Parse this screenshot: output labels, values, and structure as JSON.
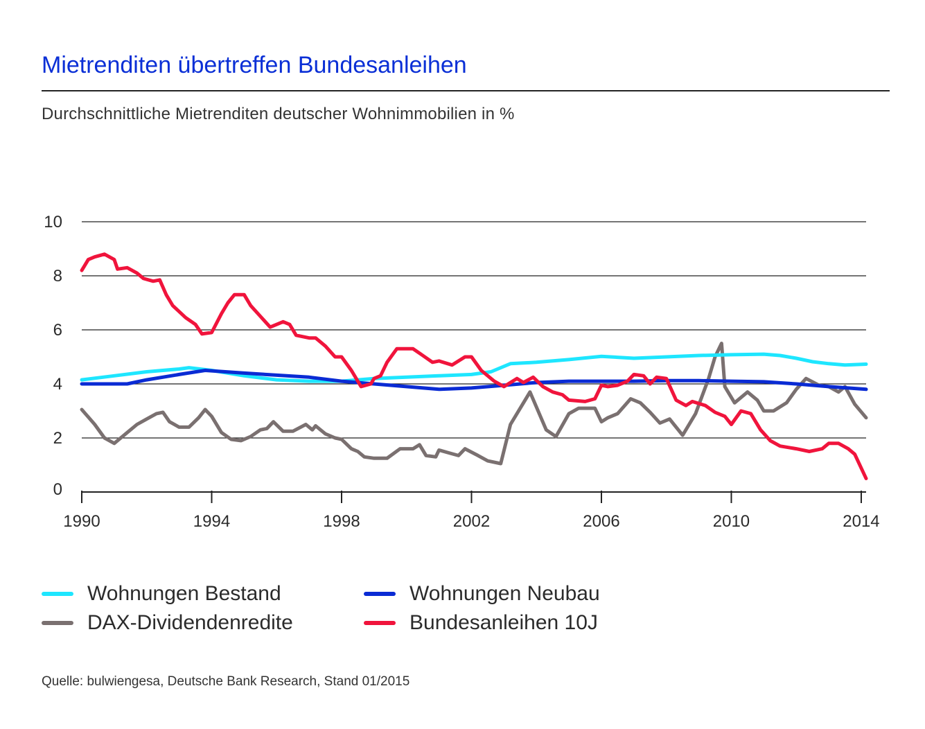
{
  "title": "Mietrenditen übertreffen Bundesanleihen",
  "subtitle": "Durchschnittliche Mietrenditen deutscher Wohnimmobilien in %",
  "source": "Quelle: bulwiengesa, Deutsche Bank Research, Stand 01/2015",
  "legend": [
    {
      "label": "Wohnungen Bestand",
      "color": "#1ee6ff"
    },
    {
      "label": "Wohnungen Neubau",
      "color": "#0a2bd4"
    },
    {
      "label": "DAX-Dividendenredite",
      "color": "#7a7070"
    },
    {
      "label": "Bundesanleihen 10J",
      "color": "#f0143c"
    }
  ],
  "chart_data": {
    "type": "line",
    "title": "Mietrenditen übertreffen Bundesanleihen",
    "xlabel": "",
    "ylabel": "",
    "xlim": [
      1990,
      2014.15
    ],
    "ylim": [
      0,
      10
    ],
    "grid": true,
    "x_ticks": [
      "1990",
      "1994",
      "1998",
      "2002",
      "2006",
      "2010",
      "2014"
    ],
    "x_tick_values": [
      1990,
      1994,
      1998,
      2002,
      2006,
      2010,
      2014
    ],
    "y_ticks": [
      "0",
      "2",
      "4",
      "6",
      "8",
      "10"
    ],
    "y_tick_values": [
      0,
      2,
      4,
      6,
      8,
      10
    ],
    "series": [
      {
        "name": "Wohnungen Bestand",
        "color": "#1ee6ff",
        "points": [
          [
            1990,
            4.15
          ],
          [
            1991,
            4.3
          ],
          [
            1992,
            4.45
          ],
          [
            1993,
            4.55
          ],
          [
            1993.3,
            4.6
          ],
          [
            1994,
            4.5
          ],
          [
            1995,
            4.3
          ],
          [
            1996,
            4.15
          ],
          [
            1997,
            4.1
          ],
          [
            1998,
            4.1
          ],
          [
            1999,
            4.2
          ],
          [
            2000,
            4.25
          ],
          [
            2001,
            4.3
          ],
          [
            2002,
            4.35
          ],
          [
            2002.6,
            4.45
          ],
          [
            2003.2,
            4.75
          ],
          [
            2004,
            4.8
          ],
          [
            2005,
            4.9
          ],
          [
            2006,
            5.02
          ],
          [
            2007,
            4.95
          ],
          [
            2008,
            5.0
          ],
          [
            2009,
            5.05
          ],
          [
            2010,
            5.08
          ],
          [
            2011,
            5.1
          ],
          [
            2011.5,
            5.05
          ],
          [
            2012,
            4.95
          ],
          [
            2012.5,
            4.82
          ],
          [
            2013,
            4.75
          ],
          [
            2013.5,
            4.7
          ],
          [
            2014.15,
            4.73
          ]
        ]
      },
      {
        "name": "Wohnungen Neubau",
        "color": "#0a2bd4",
        "points": [
          [
            1990,
            4.0
          ],
          [
            1991.4,
            4.0
          ],
          [
            1992,
            4.15
          ],
          [
            1993,
            4.35
          ],
          [
            1993.8,
            4.5
          ],
          [
            1995,
            4.4
          ],
          [
            1997,
            4.25
          ],
          [
            1998,
            4.1
          ],
          [
            1999,
            4.0
          ],
          [
            2000,
            3.9
          ],
          [
            2001,
            3.8
          ],
          [
            2002,
            3.85
          ],
          [
            2003,
            3.95
          ],
          [
            2004,
            4.05
          ],
          [
            2005,
            4.1
          ],
          [
            2007,
            4.1
          ],
          [
            2008,
            4.12
          ],
          [
            2009,
            4.12
          ],
          [
            2010,
            4.1
          ],
          [
            2011,
            4.08
          ],
          [
            2012,
            4.0
          ],
          [
            2013,
            3.9
          ],
          [
            2014.15,
            3.8
          ]
        ]
      },
      {
        "name": "DAX-Dividendenredite",
        "color": "#7a7070",
        "points": [
          [
            1990,
            3.05
          ],
          [
            1990.4,
            2.5
          ],
          [
            1990.7,
            2.0
          ],
          [
            1991,
            1.8
          ],
          [
            1991.4,
            2.2
          ],
          [
            1991.7,
            2.5
          ],
          [
            1992,
            2.7
          ],
          [
            1992.3,
            2.9
          ],
          [
            1992.5,
            2.95
          ],
          [
            1992.7,
            2.6
          ],
          [
            1993,
            2.4
          ],
          [
            1993.3,
            2.4
          ],
          [
            1993.6,
            2.75
          ],
          [
            1993.8,
            3.05
          ],
          [
            1994,
            2.8
          ],
          [
            1994.3,
            2.2
          ],
          [
            1994.6,
            1.95
          ],
          [
            1994.9,
            1.9
          ],
          [
            1995.2,
            2.05
          ],
          [
            1995.5,
            2.3
          ],
          [
            1995.7,
            2.35
          ],
          [
            1995.9,
            2.6
          ],
          [
            1996.2,
            2.25
          ],
          [
            1996.5,
            2.25
          ],
          [
            1996.9,
            2.5
          ],
          [
            1997.1,
            2.3
          ],
          [
            1997.2,
            2.45
          ],
          [
            1997.5,
            2.15
          ],
          [
            1997.8,
            2.0
          ],
          [
            1998,
            1.95
          ],
          [
            1998.3,
            1.6
          ],
          [
            1998.5,
            1.5
          ],
          [
            1998.7,
            1.3
          ],
          [
            1999,
            1.25
          ],
          [
            1999.4,
            1.25
          ],
          [
            1999.8,
            1.6
          ],
          [
            2000.2,
            1.6
          ],
          [
            2000.4,
            1.75
          ],
          [
            2000.6,
            1.35
          ],
          [
            2000.9,
            1.3
          ],
          [
            2001,
            1.55
          ],
          [
            2001.3,
            1.45
          ],
          [
            2001.6,
            1.35
          ],
          [
            2001.8,
            1.6
          ],
          [
            2002.2,
            1.35
          ],
          [
            2002.5,
            1.15
          ],
          [
            2002.9,
            1.05
          ],
          [
            2003.2,
            2.5
          ],
          [
            2003.8,
            3.7
          ],
          [
            2004.3,
            2.3
          ],
          [
            2004.6,
            2.05
          ],
          [
            2005,
            2.9
          ],
          [
            2005.3,
            3.1
          ],
          [
            2005.8,
            3.1
          ],
          [
            2006,
            2.6
          ],
          [
            2006.2,
            2.75
          ],
          [
            2006.5,
            2.9
          ],
          [
            2006.9,
            3.45
          ],
          [
            2007.2,
            3.3
          ],
          [
            2007.5,
            2.95
          ],
          [
            2007.8,
            2.55
          ],
          [
            2008.1,
            2.7
          ],
          [
            2008.5,
            2.1
          ],
          [
            2008.9,
            2.9
          ],
          [
            2009.3,
            4.2
          ],
          [
            2009.5,
            5.0
          ],
          [
            2009.7,
            5.5
          ],
          [
            2009.8,
            3.9
          ],
          [
            2010.1,
            3.3
          ],
          [
            2010.5,
            3.7
          ],
          [
            2010.8,
            3.4
          ],
          [
            2011,
            3.0
          ],
          [
            2011.3,
            3.0
          ],
          [
            2011.7,
            3.3
          ],
          [
            2012,
            3.8
          ],
          [
            2012.3,
            4.2
          ],
          [
            2012.7,
            3.95
          ],
          [
            2013,
            3.9
          ],
          [
            2013.3,
            3.7
          ],
          [
            2013.5,
            3.9
          ],
          [
            2013.8,
            3.25
          ],
          [
            2014.15,
            2.75
          ]
        ]
      },
      {
        "name": "Bundesanleihen 10J",
        "color": "#f0143c",
        "points": [
          [
            1990,
            8.2
          ],
          [
            1990.2,
            8.6
          ],
          [
            1990.4,
            8.7
          ],
          [
            1990.7,
            8.8
          ],
          [
            1991,
            8.6
          ],
          [
            1991.1,
            8.25
          ],
          [
            1991.4,
            8.3
          ],
          [
            1991.7,
            8.1
          ],
          [
            1991.9,
            7.9
          ],
          [
            1992.2,
            7.8
          ],
          [
            1992.4,
            7.85
          ],
          [
            1992.6,
            7.3
          ],
          [
            1992.8,
            6.9
          ],
          [
            1993.2,
            6.45
          ],
          [
            1993.5,
            6.2
          ],
          [
            1993.7,
            5.85
          ],
          [
            1994,
            5.9
          ],
          [
            1994.3,
            6.6
          ],
          [
            1994.5,
            7.0
          ],
          [
            1994.7,
            7.3
          ],
          [
            1995,
            7.3
          ],
          [
            1995.2,
            6.9
          ],
          [
            1995.5,
            6.5
          ],
          [
            1995.8,
            6.1
          ],
          [
            1996.2,
            6.3
          ],
          [
            1996.4,
            6.2
          ],
          [
            1996.6,
            5.8
          ],
          [
            1997,
            5.7
          ],
          [
            1997.2,
            5.7
          ],
          [
            1997.5,
            5.4
          ],
          [
            1997.8,
            5.0
          ],
          [
            1998,
            5.0
          ],
          [
            1998.3,
            4.5
          ],
          [
            1998.6,
            3.9
          ],
          [
            1998.9,
            4.0
          ],
          [
            1999,
            4.2
          ],
          [
            1999.2,
            4.3
          ],
          [
            1999.4,
            4.8
          ],
          [
            1999.7,
            5.3
          ],
          [
            2000.2,
            5.3
          ],
          [
            2000.5,
            5.05
          ],
          [
            2000.8,
            4.8
          ],
          [
            2001,
            4.85
          ],
          [
            2001.4,
            4.7
          ],
          [
            2001.8,
            5.0
          ],
          [
            2002,
            5.0
          ],
          [
            2002.3,
            4.5
          ],
          [
            2002.7,
            4.1
          ],
          [
            2003,
            3.9
          ],
          [
            2003.4,
            4.2
          ],
          [
            2003.6,
            4.05
          ],
          [
            2003.9,
            4.25
          ],
          [
            2004.2,
            3.9
          ],
          [
            2004.5,
            3.7
          ],
          [
            2004.8,
            3.6
          ],
          [
            2005,
            3.4
          ],
          [
            2005.5,
            3.35
          ],
          [
            2005.8,
            3.45
          ],
          [
            2006,
            3.95
          ],
          [
            2006.2,
            3.9
          ],
          [
            2006.5,
            3.95
          ],
          [
            2006.8,
            4.1
          ],
          [
            2007,
            4.35
          ],
          [
            2007.3,
            4.3
          ],
          [
            2007.5,
            4.0
          ],
          [
            2007.7,
            4.25
          ],
          [
            2008,
            4.2
          ],
          [
            2008.3,
            3.4
          ],
          [
            2008.6,
            3.2
          ],
          [
            2008.8,
            3.35
          ],
          [
            2009.2,
            3.2
          ],
          [
            2009.5,
            2.95
          ],
          [
            2009.8,
            2.8
          ],
          [
            2010,
            2.5
          ],
          [
            2010.3,
            3.0
          ],
          [
            2010.6,
            2.9
          ],
          [
            2010.9,
            2.3
          ],
          [
            2011.2,
            1.9
          ],
          [
            2011.5,
            1.7
          ],
          [
            2012,
            1.6
          ],
          [
            2012.4,
            1.5
          ],
          [
            2012.8,
            1.6
          ],
          [
            2013,
            1.8
          ],
          [
            2013.3,
            1.8
          ],
          [
            2013.6,
            1.6
          ],
          [
            2013.8,
            1.4
          ],
          [
            2014.15,
            0.5
          ]
        ]
      }
    ]
  }
}
